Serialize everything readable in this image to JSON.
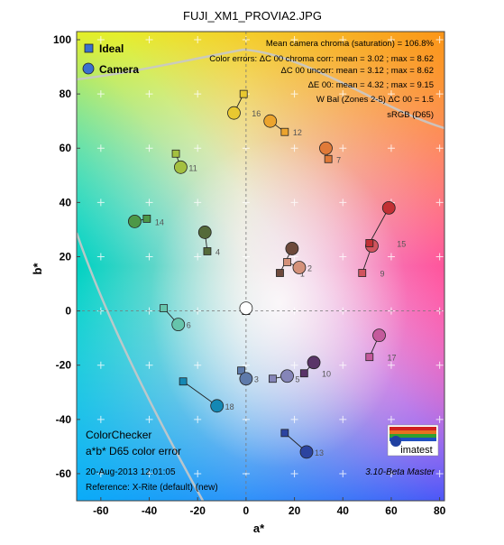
{
  "chart_data": {
    "type": "scatter",
    "title": "FUJI_XM1_PROVIA2.JPG",
    "xlabel": "a*",
    "ylabel": "b*",
    "xlim": [
      -70,
      82
    ],
    "ylim": [
      -70,
      103
    ],
    "xticks": [
      -60,
      -40,
      -20,
      0,
      20,
      40,
      60,
      80
    ],
    "yticks": [
      -60,
      -40,
      -20,
      0,
      20,
      40,
      60,
      80,
      100
    ],
    "grid": true,
    "legend": {
      "placement": "top-left",
      "entries": [
        {
          "label": "Ideal",
          "marker": "square",
          "color": "#3a6fd0"
        },
        {
          "label": "Camera",
          "marker": "circle",
          "color": "#3a6fd0"
        }
      ]
    },
    "stats": [
      "Mean camera chroma (saturation) = 106.8%",
      "Color errors: ΔC 00 chroma corr:  mean = 3.02 ;  max = 8.62",
      "ΔC 00 uncorr:  mean = 3.12 ;  max = 8.62",
      "ΔE 00:  mean = 4.32 ;  max = 9.15",
      "W Bal (Zones 2-5) ΔC 00 = 1.5",
      "sRGB (D65)"
    ],
    "footer_left": [
      "ColorChecker",
      "a*b* D65 color error",
      "20-Aug-2013 12:01:05",
      "Reference: X-Rite (default) (new)"
    ],
    "logo_text": "imatest",
    "version": "3.10-Beta  Master",
    "patches": [
      {
        "id": "1",
        "ideal": [
          14,
          14
        ],
        "camera": [
          19,
          23
        ],
        "color": "#6e4a3c"
      },
      {
        "id": "2",
        "ideal": [
          17,
          18
        ],
        "camera": [
          22,
          16
        ],
        "color": "#d4917a"
      },
      {
        "id": "3",
        "ideal": [
          -2,
          -22
        ],
        "camera": [
          0,
          -25
        ],
        "color": "#5e7aaa"
      },
      {
        "id": "4",
        "ideal": [
          -16,
          22
        ],
        "camera": [
          -17,
          29
        ],
        "color": "#546a3a"
      },
      {
        "id": "5",
        "ideal": [
          11,
          -25
        ],
        "camera": [
          17,
          -24
        ],
        "color": "#8585b8"
      },
      {
        "id": "6",
        "ideal": [
          -34,
          1
        ],
        "camera": [
          -28,
          -5
        ],
        "color": "#66c5ac"
      },
      {
        "id": "7",
        "ideal": [
          34,
          56
        ],
        "camera": [
          33,
          60
        ],
        "color": "#e07a38"
      },
      {
        "id": "8",
        "ideal": [
          ",",
          ","
        ],
        "camera": [
          ",",
          ","
        ],
        "color": "#000000"
      },
      {
        "id": "9",
        "ideal": [
          48,
          14
        ],
        "camera": [
          52,
          24
        ],
        "color": "#d0545e"
      },
      {
        "id": "10",
        "ideal": [
          24,
          -23
        ],
        "camera": [
          28,
          -19
        ],
        "color": "#5a3468"
      },
      {
        "id": "11",
        "ideal": [
          -29,
          58
        ],
        "camera": [
          -27,
          53
        ],
        "color": "#a4c040"
      },
      {
        "id": "12",
        "ideal": [
          16,
          66
        ],
        "camera": [
          10,
          70
        ],
        "color": "#eca42e"
      },
      {
        "id": "13",
        "ideal": [
          16,
          -45
        ],
        "camera": [
          25,
          -52
        ],
        "color": "#2c44a0"
      },
      {
        "id": "14",
        "ideal": [
          -41,
          34
        ],
        "camera": [
          -46,
          33
        ],
        "color": "#4d9848"
      },
      {
        "id": "15",
        "ideal": [
          51,
          25
        ],
        "camera": [
          59,
          38
        ],
        "color": "#c23034"
      },
      {
        "id": "16",
        "ideal": [
          -1,
          80
        ],
        "camera": [
          -5,
          73
        ],
        "color": "#e8c830"
      },
      {
        "id": "17",
        "ideal": [
          51,
          -17
        ],
        "camera": [
          55,
          -9
        ],
        "color": "#c45a9c"
      },
      {
        "id": "18",
        "ideal": [
          -26,
          -26
        ],
        "camera": [
          -12,
          -35
        ],
        "color": "#1488b4"
      },
      {
        "id": "19-24",
        "ideal": [
          0,
          0
        ],
        "camera": [
          0,
          1
        ],
        "color": "#ffffff"
      }
    ]
  }
}
